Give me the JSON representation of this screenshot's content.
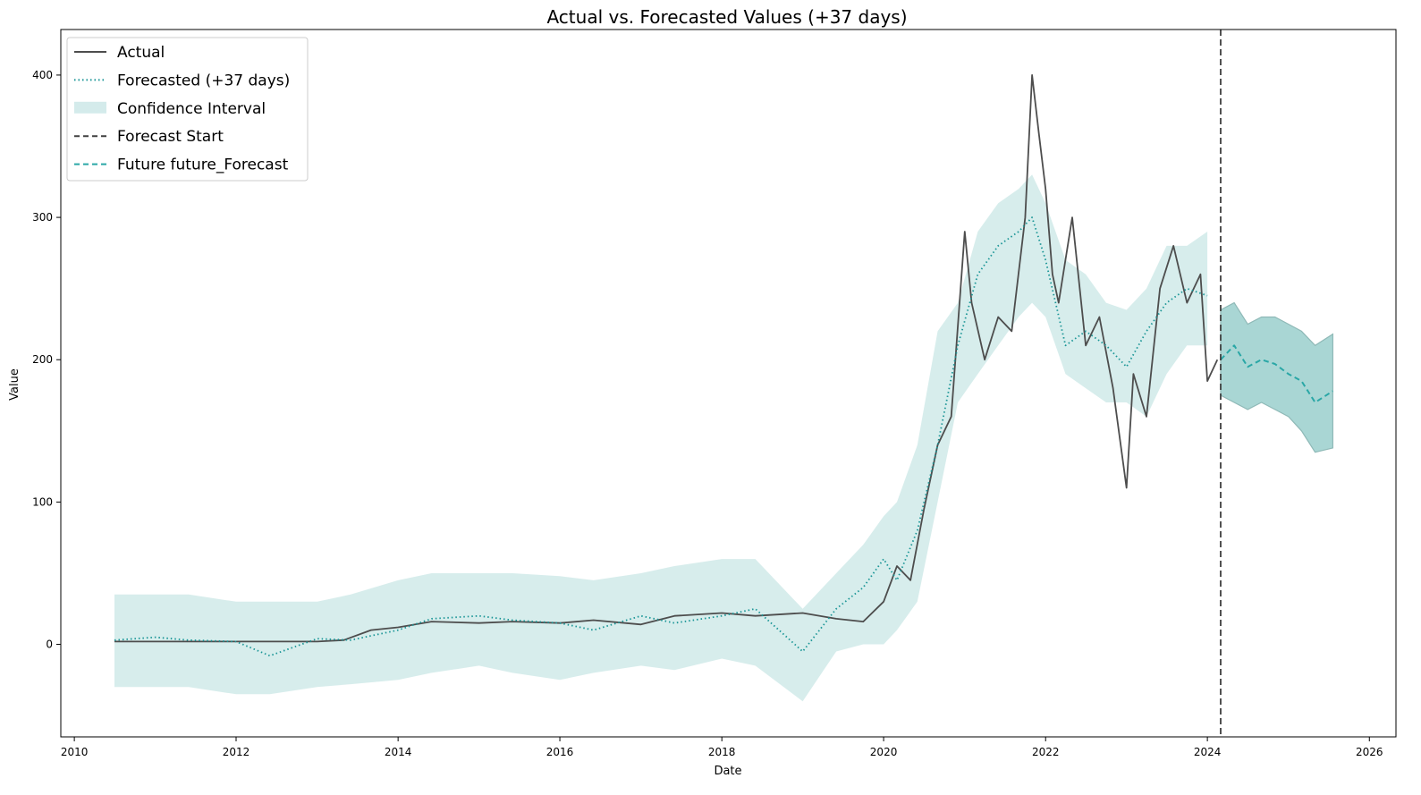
{
  "chart_data": {
    "type": "line",
    "title": "Actual vs. Forecasted Values (+37 days)",
    "xlabel": "Date",
    "ylabel": "Value",
    "xlim": [
      "2009-11-01",
      "2026-05-01"
    ],
    "ylim": [
      -65,
      432
    ],
    "x_ticks": [
      "2010",
      "2012",
      "2014",
      "2016",
      "2018",
      "2020",
      "2022",
      "2024",
      "2026"
    ],
    "y_ticks": [
      0,
      100,
      200,
      300,
      400
    ],
    "grid": false,
    "legend": {
      "placement": "top-left",
      "entries": [
        "Actual",
        "Forecasted (+37 days)",
        "Confidence Interval",
        "Forecast Start",
        "Future future_Forecast"
      ]
    },
    "colors": {
      "actual": "#4d4d4d",
      "forecasted": "#1a9596",
      "confidence_interval": "#b7dedd",
      "forecast_start": "#404040",
      "future_forecast": "#2aa7a6",
      "future_band": "#a4d4d2"
    },
    "forecast_start_date": "2024-03-01",
    "series": [
      {
        "name": "Actual",
        "style": "solid",
        "x": [
          "2010-07-01",
          "2011-01-01",
          "2012-01-01",
          "2013-01-01",
          "2013-05-01",
          "2013-09-01",
          "2014-01-01",
          "2014-06-01",
          "2015-01-01",
          "2015-06-01",
          "2016-01-01",
          "2016-06-01",
          "2017-01-01",
          "2017-06-01",
          "2018-01-01",
          "2018-06-01",
          "2019-01-01",
          "2019-06-01",
          "2019-10-01",
          "2020-01-01",
          "2020-03-01",
          "2020-05-01",
          "2020-07-01",
          "2020-09-01",
          "2020-11-01",
          "2021-01-01",
          "2021-02-01",
          "2021-04-01",
          "2021-06-01",
          "2021-08-01",
          "2021-10-01",
          "2021-11-01",
          "2021-12-01",
          "2022-01-01",
          "2022-02-01",
          "2022-03-01",
          "2022-05-01",
          "2022-07-01",
          "2022-09-01",
          "2022-11-01",
          "2023-01-01",
          "2023-02-01",
          "2023-04-01",
          "2023-06-01",
          "2023-08-01",
          "2023-10-01",
          "2023-12-01",
          "2024-01-01",
          "2024-02-15"
        ],
        "y": [
          2,
          2,
          2,
          2,
          3,
          10,
          12,
          16,
          15,
          16,
          15,
          17,
          14,
          20,
          22,
          20,
          22,
          18,
          16,
          30,
          55,
          45,
          95,
          140,
          160,
          290,
          240,
          200,
          230,
          220,
          300,
          400,
          360,
          320,
          260,
          240,
          300,
          210,
          230,
          180,
          110,
          190,
          160,
          250,
          280,
          240,
          260,
          185,
          200
        ]
      },
      {
        "name": "Forecasted (+37 days)",
        "style": "dotted",
        "x": [
          "2010-07-01",
          "2011-01-01",
          "2011-06-01",
          "2012-01-01",
          "2012-06-01",
          "2013-01-01",
          "2013-06-01",
          "2014-01-01",
          "2014-06-01",
          "2015-01-01",
          "2015-06-01",
          "2016-01-01",
          "2016-06-01",
          "2017-01-01",
          "2017-06-01",
          "2018-01-01",
          "2018-06-01",
          "2019-01-01",
          "2019-06-01",
          "2019-10-01",
          "2020-01-01",
          "2020-03-01",
          "2020-06-01",
          "2020-09-01",
          "2020-12-01",
          "2021-03-01",
          "2021-06-01",
          "2021-09-01",
          "2021-11-01",
          "2022-01-01",
          "2022-04-01",
          "2022-07-01",
          "2022-10-01",
          "2023-01-01",
          "2023-04-01",
          "2023-07-01",
          "2023-10-01",
          "2024-01-01"
        ],
        "y": [
          3,
          5,
          3,
          2,
          -8,
          4,
          3,
          10,
          18,
          20,
          17,
          15,
          10,
          20,
          15,
          20,
          25,
          -5,
          25,
          40,
          60,
          45,
          80,
          140,
          210,
          260,
          280,
          290,
          300,
          270,
          210,
          220,
          210,
          195,
          220,
          240,
          250,
          245
        ]
      },
      {
        "name": "Future future_Forecast",
        "style": "dashed",
        "x": [
          "2024-03-01",
          "2024-05-01",
          "2024-07-01",
          "2024-09-01",
          "2024-11-01",
          "2025-01-01",
          "2025-03-01",
          "2025-05-01",
          "2025-07-20"
        ],
        "y": [
          200,
          210,
          195,
          200,
          197,
          190,
          185,
          170,
          178
        ]
      }
    ],
    "bands": [
      {
        "name": "Confidence Interval",
        "x": [
          "2010-07-01",
          "2011-06-01",
          "2012-01-01",
          "2012-06-01",
          "2013-01-01",
          "2013-06-01",
          "2014-01-01",
          "2014-06-01",
          "2015-01-01",
          "2015-06-01",
          "2016-01-01",
          "2016-06-01",
          "2017-01-01",
          "2017-06-01",
          "2018-01-01",
          "2018-06-01",
          "2019-01-01",
          "2019-06-01",
          "2019-10-01",
          "2020-01-01",
          "2020-03-01",
          "2020-06-01",
          "2020-09-01",
          "2020-12-01",
          "2021-03-01",
          "2021-06-01",
          "2021-09-01",
          "2021-11-01",
          "2022-01-01",
          "2022-04-01",
          "2022-07-01",
          "2022-10-01",
          "2023-01-01",
          "2023-04-01",
          "2023-07-01",
          "2023-10-01",
          "2024-01-01"
        ],
        "lower": [
          -30,
          -30,
          -35,
          -35,
          -30,
          -28,
          -25,
          -20,
          -15,
          -20,
          -25,
          -20,
          -15,
          -18,
          -10,
          -15,
          -40,
          -5,
          0,
          0,
          10,
          30,
          100,
          170,
          190,
          210,
          230,
          240,
          230,
          190,
          180,
          170,
          170,
          160,
          190,
          210,
          210
        ],
        "upper": [
          35,
          35,
          30,
          30,
          30,
          35,
          45,
          50,
          50,
          50,
          48,
          45,
          50,
          55,
          60,
          60,
          25,
          50,
          70,
          90,
          100,
          140,
          220,
          240,
          290,
          310,
          320,
          330,
          310,
          270,
          260,
          240,
          235,
          250,
          280,
          280,
          290
        ]
      },
      {
        "name": "future_forecast_interval",
        "x": [
          "2024-03-01",
          "2024-05-01",
          "2024-07-01",
          "2024-09-01",
          "2024-11-01",
          "2025-01-01",
          "2025-03-01",
          "2025-05-01",
          "2025-07-20"
        ],
        "lower": [
          175,
          170,
          165,
          170,
          165,
          160,
          150,
          135,
          138
        ],
        "upper": [
          235,
          240,
          225,
          230,
          230,
          225,
          220,
          210,
          218
        ]
      }
    ]
  }
}
